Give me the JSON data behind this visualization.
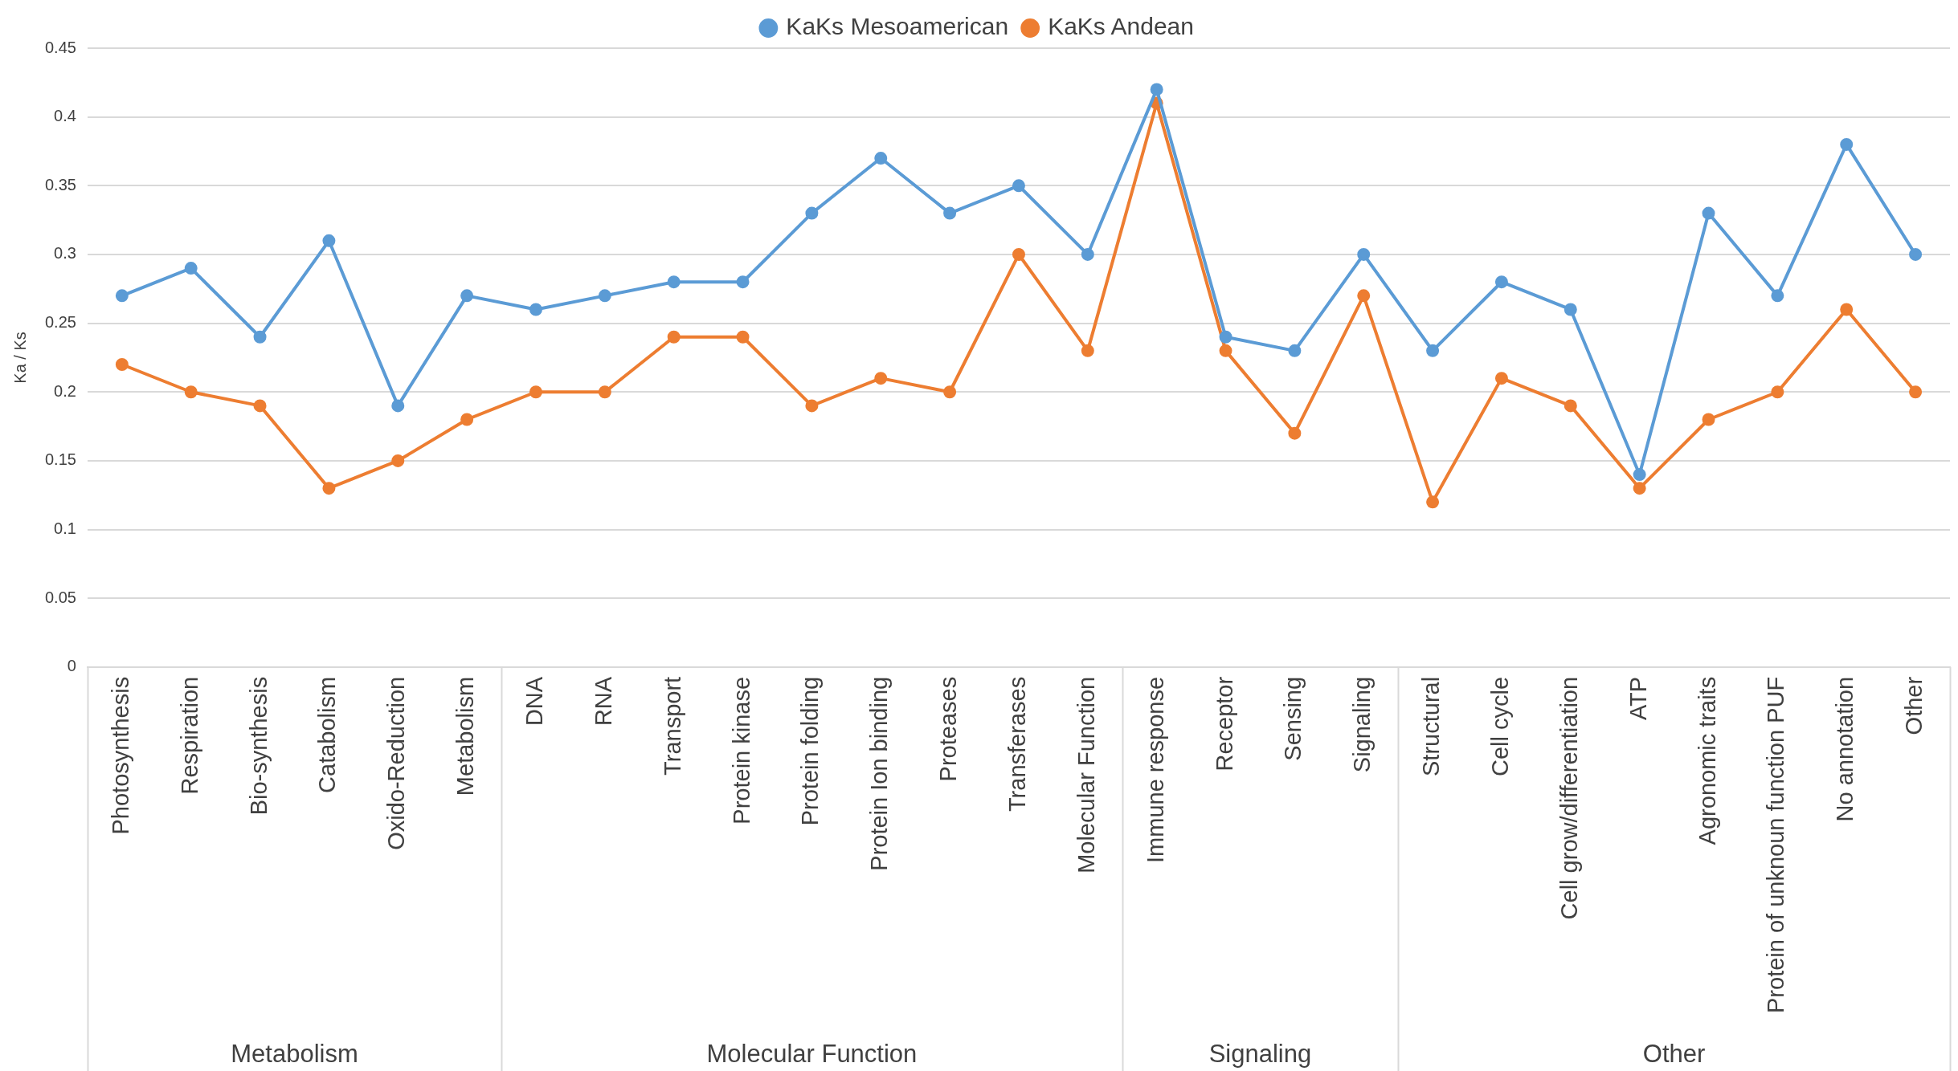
{
  "chart_data": {
    "type": "line",
    "ylabel": "Ka / Ks",
    "categories": [
      "Photosynthesis",
      "Respiration",
      "Bio-synthesis",
      "Catabolism",
      "Oxido-Reduction",
      "Metabolism",
      "DNA",
      "RNA",
      "Transport",
      "Protein kinase",
      "Protein folding",
      "Protein Ion binding",
      "Proteases",
      "Transferases",
      "Molecular Function",
      "Immune response",
      "Receptor",
      "Sensing",
      "Signaling",
      "Structural",
      "Cell cycle",
      "Cell grow/differentiation",
      "ATP",
      "Agronomic traits",
      "Protein of unknoun function PUF",
      "No annotation",
      "Other"
    ],
    "series": [
      {
        "name": "KaKs Mesoamerican",
        "color": "#5b9bd5",
        "values": [
          0.27,
          0.29,
          0.24,
          0.31,
          0.19,
          0.27,
          0.26,
          0.27,
          0.28,
          0.28,
          0.33,
          0.37,
          0.33,
          0.35,
          0.3,
          0.42,
          0.24,
          0.23,
          0.3,
          0.23,
          0.28,
          0.26,
          0.14,
          0.33,
          0.27,
          0.38,
          0.3
        ]
      },
      {
        "name": "KaKs Andean",
        "color": "#ed7d31",
        "values": [
          0.22,
          0.2,
          0.19,
          0.13,
          0.15,
          0.18,
          0.2,
          0.2,
          0.24,
          0.24,
          0.19,
          0.21,
          0.2,
          0.3,
          0.23,
          0.41,
          0.23,
          0.17,
          0.27,
          0.12,
          0.21,
          0.19,
          0.13,
          0.18,
          0.2,
          0.26,
          0.2
        ]
      }
    ],
    "annotations": [
      "Metabolism",
      "Molecular Function",
      "Signaling",
      "Other"
    ],
    "ylim": [
      0,
      0.45
    ],
    "yticks": [
      0,
      0.05,
      0.1,
      0.15,
      0.2,
      0.25,
      0.3,
      0.35,
      0.4,
      0.45
    ],
    "grid": "y",
    "legend": "top",
    "marker": "circle",
    "line_style": "solid"
  }
}
